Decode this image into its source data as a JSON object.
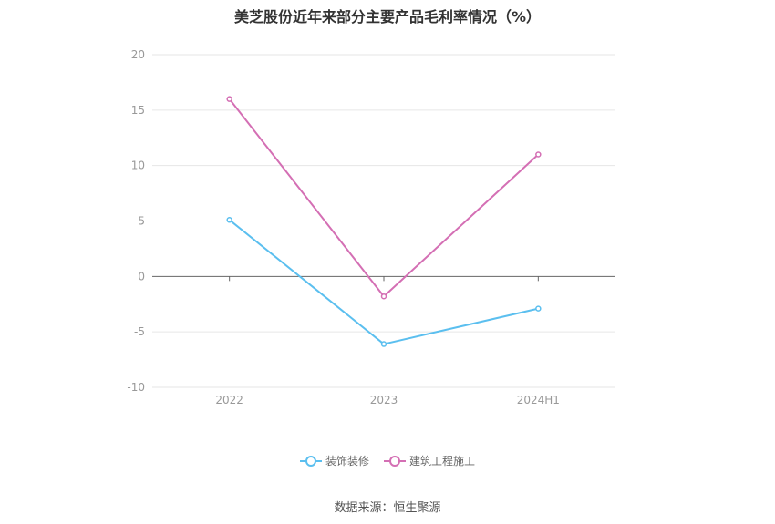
{
  "title": "美芝股份近年来部分主要产品毛利率情况（%）",
  "source": "数据来源：恒生聚源",
  "colors": {
    "decoration": "#5bbfef",
    "construction": "#d46fb4"
  },
  "chart_data": {
    "type": "line",
    "title": "美芝股份近年来部分主要产品毛利率情况（%）",
    "categories": [
      "2022",
      "2023",
      "2024H1"
    ],
    "series": [
      {
        "name": "装饰装修",
        "values": [
          5.1,
          -6.1,
          -2.9
        ],
        "color": "#5bbfef"
      },
      {
        "name": "建筑工程施工",
        "values": [
          16.0,
          -1.8,
          11.0
        ],
        "color": "#d46fb4"
      }
    ],
    "ylim": [
      -10,
      20
    ],
    "yticks": [
      20,
      15,
      10,
      5,
      0,
      -5,
      -10
    ],
    "grid": true,
    "legend": "bottom"
  }
}
